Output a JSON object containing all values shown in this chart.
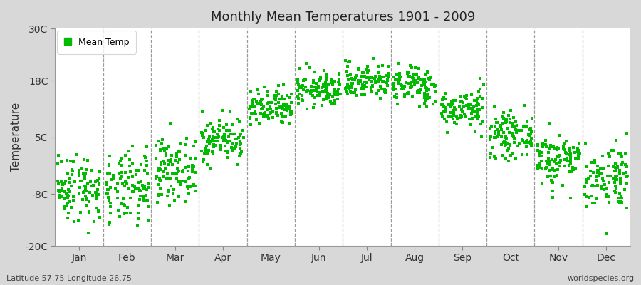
{
  "title": "Monthly Mean Temperatures 1901 - 2009",
  "ylabel": "Temperature",
  "xlabel": "",
  "latitude": "Latitude 57.75 Longitude 26.75",
  "watermark": "worldspecies.org",
  "legend_label": "Mean Temp",
  "dot_color": "#00BB00",
  "fig_bg_color": "#D8D8D8",
  "plot_bg_color": "#FFFFFF",
  "ylim": [
    -20,
    30
  ],
  "yticks": [
    -20,
    -8,
    5,
    18,
    30
  ],
  "ytick_labels": [
    "-20C",
    "-8C",
    "5C",
    "18C",
    "30C"
  ],
  "months": [
    "Jan",
    "Feb",
    "Mar",
    "Apr",
    "May",
    "Jun",
    "Jul",
    "Aug",
    "Sep",
    "Oct",
    "Nov",
    "Dec"
  ],
  "monthly_means": [
    -6.5,
    -7.0,
    -2.5,
    4.5,
    11.5,
    16.0,
    18.0,
    17.0,
    11.5,
    5.5,
    0.0,
    -4.0
  ],
  "monthly_stds": [
    4.0,
    4.2,
    3.5,
    2.5,
    2.2,
    2.0,
    2.0,
    2.2,
    2.2,
    2.5,
    3.0,
    3.8
  ],
  "n_years": 109,
  "figsize": [
    9.0,
    4.0
  ],
  "dpi": 100
}
